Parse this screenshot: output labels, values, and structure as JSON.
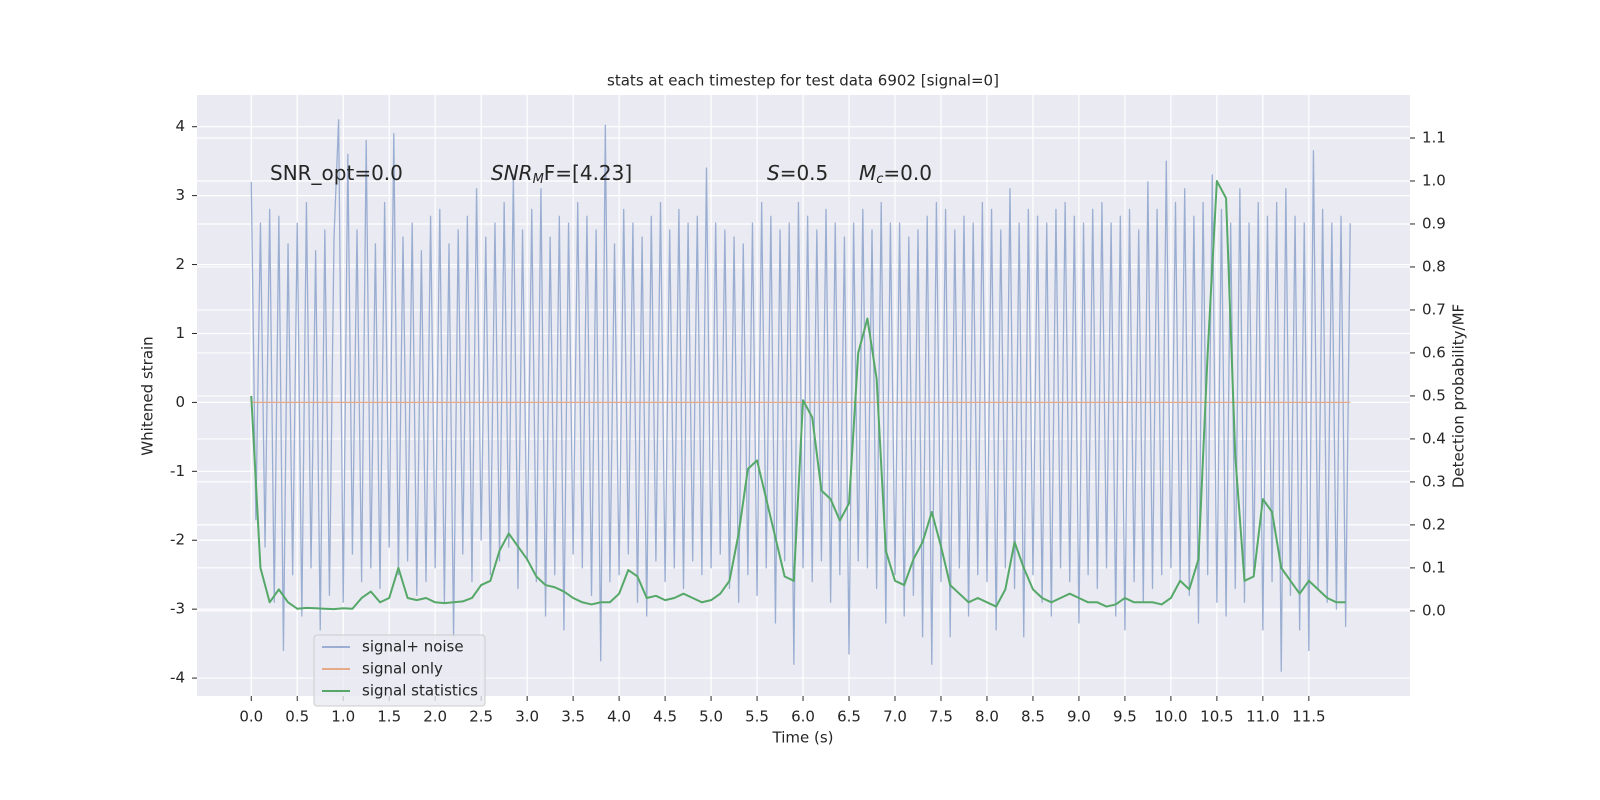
{
  "chart_data": {
    "type": "line",
    "title": "stats at each timestep for test data 6902 [signal=0]",
    "xlabel": "Time (s)",
    "ylabel": "Whitened strain",
    "y2label": "Detection probability/MF",
    "annotations": [
      [
        "SNR_opt=0.0"
      ],
      [
        "SNR",
        "M",
        "F=[4.23]"
      ],
      [
        "S",
        "=0.5"
      ],
      [
        "M",
        "c",
        "=0.0"
      ]
    ],
    "grid": true,
    "legend": "lower left",
    "xlim": [
      -0.59,
      12.6
    ],
    "ylim": [
      -4.26,
      4.46
    ],
    "y2lim": [
      -0.198,
      1.2
    ],
    "xticks": [
      {
        "value": 0,
        "label": "0.0"
      },
      0.5,
      {
        "value": 1,
        "label": "1.0"
      },
      1.5,
      {
        "value": 2,
        "label": "2.0"
      },
      2.5,
      {
        "value": 3,
        "label": "3.0"
      },
      3.5,
      {
        "value": 4,
        "label": "4.0"
      },
      4.5,
      {
        "value": 5,
        "label": "5.0"
      },
      5.5,
      {
        "value": 6,
        "label": "6.0"
      },
      6.5,
      {
        "value": 7,
        "label": "7.0"
      },
      7.5,
      {
        "value": 8,
        "label": "8.0"
      },
      8.5,
      {
        "value": 9,
        "label": "9.0"
      },
      9.5,
      {
        "value": 10,
        "label": "10.0"
      },
      10.5,
      {
        "value": 11,
        "label": "11.0"
      },
      11.5
    ],
    "yticks": [
      -4,
      -3,
      -2,
      -1,
      0,
      1,
      2,
      3,
      4
    ],
    "y2ticks": [
      {
        "value": 0,
        "label": "0.0"
      },
      0.1,
      0.2,
      0.3,
      0.4,
      0.5,
      0.6,
      0.7,
      0.8,
      0.9,
      {
        "value": 1,
        "label": "1.0"
      },
      1.1
    ],
    "series": [
      {
        "name": "signal+ noise",
        "color": "#9aaed2",
        "x": [
          0,
          0.05,
          0.1,
          0.15,
          0.2,
          0.25,
          0.3,
          0.35,
          0.4,
          0.45,
          0.5,
          0.55,
          0.6,
          0.65,
          0.7,
          0.75,
          0.8,
          0.85,
          0.9,
          0.95,
          1,
          1.05,
          1.1,
          1.15,
          1.2,
          1.25,
          1.3,
          1.35,
          1.4,
          1.45,
          1.5,
          1.55,
          1.6,
          1.65,
          1.7,
          1.75,
          1.8,
          1.85,
          1.9,
          1.95,
          2,
          2.05,
          2.1,
          2.15,
          2.2,
          2.25,
          2.3,
          2.35,
          2.4,
          2.45,
          2.5,
          2.55,
          2.6,
          2.65,
          2.7,
          2.75,
          2.8,
          2.85,
          2.9,
          2.95,
          3,
          3.05,
          3.1,
          3.15,
          3.2,
          3.25,
          3.3,
          3.35,
          3.4,
          3.45,
          3.5,
          3.55,
          3.6,
          3.65,
          3.7,
          3.75,
          3.8,
          3.85,
          3.9,
          3.95,
          4,
          4.05,
          4.1,
          4.15,
          4.2,
          4.25,
          4.3,
          4.35,
          4.4,
          4.45,
          4.5,
          4.55,
          4.6,
          4.65,
          4.7,
          4.75,
          4.8,
          4.85,
          4.9,
          4.95,
          5,
          5.05,
          5.1,
          5.15,
          5.2,
          5.25,
          5.3,
          5.35,
          5.4,
          5.45,
          5.5,
          5.55,
          5.6,
          5.65,
          5.7,
          5.75,
          5.8,
          5.85,
          5.9,
          5.95,
          6,
          6.05,
          6.1,
          6.15,
          6.2,
          6.25,
          6.3,
          6.35,
          6.4,
          6.45,
          6.5,
          6.55,
          6.6,
          6.65,
          6.7,
          6.75,
          6.8,
          6.85,
          6.9,
          6.95,
          7,
          7.05,
          7.1,
          7.15,
          7.2,
          7.25,
          7.3,
          7.35,
          7.4,
          7.45,
          7.5,
          7.55,
          7.6,
          7.65,
          7.7,
          7.75,
          7.8,
          7.85,
          7.9,
          7.95,
          8,
          8.05,
          8.1,
          8.15,
          8.2,
          8.25,
          8.3,
          8.35,
          8.4,
          8.45,
          8.5,
          8.55,
          8.6,
          8.65,
          8.7,
          8.75,
          8.8,
          8.85,
          8.9,
          8.95,
          9,
          9.05,
          9.1,
          9.15,
          9.2,
          9.25,
          9.3,
          9.35,
          9.4,
          9.45,
          9.5,
          9.55,
          9.6,
          9.65,
          9.7,
          9.75,
          9.8,
          9.85,
          9.9,
          9.95,
          10,
          10.05,
          10.1,
          10.15,
          10.2,
          10.25,
          10.3,
          10.35,
          10.4,
          10.45,
          10.5,
          10.55,
          10.6,
          10.65,
          10.7,
          10.75,
          10.8,
          10.85,
          10.9,
          10.95,
          11,
          11.05,
          11.1,
          11.15,
          11.2,
          11.25,
          11.3,
          11.35,
          11.4,
          11.45,
          11.5,
          11.55,
          11.6,
          11.65,
          11.7,
          11.75,
          11.8,
          11.85,
          11.9,
          11.95
        ],
        "values": [
          3.2,
          -1.7,
          2.6,
          -2.1,
          2.8,
          -2.9,
          2.7,
          -3.6,
          2.3,
          -2.5,
          2.6,
          -3.1,
          2.9,
          -2.4,
          2.2,
          -3.3,
          2.5,
          -2.8,
          2.4,
          4.1,
          -2.9,
          3.6,
          -2.2,
          2.5,
          -2.6,
          3.8,
          -2.4,
          2.3,
          -2.7,
          2.9,
          -2.1,
          3.9,
          -2.5,
          2.4,
          -2.3,
          2.6,
          -2.8,
          2.2,
          -2.6,
          2.7,
          -2.4,
          2.8,
          -2.9,
          2.3,
          -3.4,
          2.5,
          -2.2,
          2.7,
          -2.6,
          3.1,
          -2.0,
          2.4,
          -2.5,
          2.6,
          -2.3,
          2.9,
          -2.1,
          3.3,
          -2.7,
          2.5,
          -2.3,
          2.8,
          -2.6,
          3.1,
          -3.1,
          2.4,
          -2.5,
          2.7,
          -3.3,
          2.6,
          -2.2,
          2.9,
          -2.4,
          2.7,
          -2.8,
          2.5,
          -3.75,
          4.02,
          -2.6,
          2.3,
          -2.5,
          2.8,
          -2.2,
          2.6,
          -2.9,
          2.4,
          -3.1,
          2.7,
          -2.3,
          2.9,
          -2.6,
          2.5,
          -2.4,
          2.8,
          -2.7,
          2.6,
          -2.3,
          2.7,
          -2.5,
          3.4,
          -2.4,
          2.6,
          -2.2,
          2.5,
          -2.7,
          2.4,
          -2.9,
          2.3,
          -2.5,
          2.6,
          -2.8,
          2.9,
          -2.4,
          2.7,
          -3.2,
          2.5,
          -2.3,
          2.6,
          -3.8,
          2.9,
          -2.4,
          2.7,
          -2.6,
          2.5,
          -2.3,
          2.8,
          -2.9,
          2.6,
          -2.5,
          2.4,
          -3.65,
          2.6,
          -2.3,
          2.8,
          -2.4,
          2.5,
          -2.7,
          2.9,
          -3.2,
          2.6,
          -2.5,
          2.6,
          -3.1,
          2.4,
          -2.8,
          2.5,
          -3.4,
          2.7,
          -3.8,
          2.9,
          -2.6,
          2.8,
          -3.4,
          2.5,
          -2.4,
          2.7,
          -3.1,
          2.6,
          -2.5,
          2.9,
          -2.6,
          2.8,
          -3.3,
          2.5,
          -2.4,
          3.1,
          -2.7,
          2.6,
          -3.4,
          2.8,
          -2.5,
          2.7,
          -2.9,
          2.6,
          -3.1,
          2.8,
          -2.4,
          2.9,
          -2.6,
          2.7,
          -3.2,
          2.6,
          -2.5,
          2.8,
          -2.7,
          2.9,
          -2.4,
          2.6,
          -3.1,
          2.7,
          -3.3,
          2.8,
          -2.6,
          2.5,
          -2.9,
          3.2,
          -2.7,
          2.8,
          -2.5,
          3.5,
          -2.4,
          2.9,
          -2.6,
          3.1,
          -2.8,
          2.7,
          -3.2,
          2.9,
          -2.5,
          3.3,
          -2.9,
          2.8,
          -3.1,
          2.6,
          -2.7,
          3.1,
          -2.9,
          2.6,
          -2.5,
          2.9,
          -3.3,
          2.7,
          -2.6,
          2.9,
          -3.9,
          3.1,
          -2.8,
          2.7,
          -3.3,
          2.6,
          -3.6,
          3.65,
          -2.7,
          2.8,
          -2.9,
          2.6,
          -3.0,
          2.7,
          -3.25,
          2.6
        ]
      },
      {
        "name": "signal only",
        "color": "#e6a98a",
        "x": [
          0,
          11.95
        ],
        "values": [
          0,
          0
        ]
      },
      {
        "name": "signal statistics",
        "color": "#55a868",
        "axis": "y2",
        "x": [
          0,
          0.1,
          0.2,
          0.3,
          0.4,
          0.5,
          0.6,
          0.7,
          0.8,
          0.9,
          1,
          1.1,
          1.2,
          1.3,
          1.4,
          1.5,
          1.6,
          1.7,
          1.8,
          1.9,
          2,
          2.1,
          2.2,
          2.3,
          2.4,
          2.5,
          2.6,
          2.7,
          2.8,
          2.9,
          3,
          3.1,
          3.2,
          3.3,
          3.4,
          3.5,
          3.6,
          3.7,
          3.8,
          3.9,
          4,
          4.1,
          4.2,
          4.3,
          4.4,
          4.5,
          4.6,
          4.7,
          4.8,
          4.9,
          5,
          5.1,
          5.2,
          5.3,
          5.4,
          5.5,
          5.6,
          5.7,
          5.8,
          5.9,
          6,
          6.1,
          6.2,
          6.3,
          6.4,
          6.5,
          6.6,
          6.7,
          6.8,
          6.9,
          7,
          7.1,
          7.2,
          7.3,
          7.4,
          7.5,
          7.6,
          7.7,
          7.8,
          7.9,
          8,
          8.1,
          8.2,
          8.3,
          8.4,
          8.5,
          8.6,
          8.7,
          8.8,
          8.9,
          9,
          9.1,
          9.2,
          9.3,
          9.4,
          9.5,
          9.6,
          9.7,
          9.8,
          9.9,
          10,
          10.1,
          10.2,
          10.3,
          10.4,
          10.5,
          10.6,
          10.7,
          10.8,
          10.9,
          11,
          11.1,
          11.2,
          11.3,
          11.4,
          11.5,
          11.6,
          11.7,
          11.8,
          11.9
        ],
        "values": [
          0.5,
          0.1,
          0.02,
          0.05,
          0.02,
          0.005,
          0.007,
          0.006,
          0.005,
          0.004,
          0.006,
          0.005,
          0.03,
          0.045,
          0.02,
          0.03,
          0.1,
          0.03,
          0.025,
          0.03,
          0.02,
          0.018,
          0.02,
          0.022,
          0.03,
          0.06,
          0.07,
          0.14,
          0.18,
          0.15,
          0.12,
          0.08,
          0.06,
          0.055,
          0.045,
          0.03,
          0.02,
          0.015,
          0.02,
          0.02,
          0.04,
          0.095,
          0.08,
          0.03,
          0.035,
          0.025,
          0.03,
          0.04,
          0.03,
          0.02,
          0.025,
          0.04,
          0.07,
          0.18,
          0.33,
          0.35,
          0.26,
          0.17,
          0.08,
          0.07,
          0.49,
          0.45,
          0.28,
          0.26,
          0.21,
          0.25,
          0.6,
          0.68,
          0.54,
          0.14,
          0.07,
          0.06,
          0.12,
          0.16,
          0.23,
          0.15,
          0.06,
          0.04,
          0.02,
          0.03,
          0.02,
          0.01,
          0.05,
          0.16,
          0.1,
          0.05,
          0.03,
          0.02,
          0.03,
          0.04,
          0.03,
          0.02,
          0.02,
          0.01,
          0.015,
          0.03,
          0.02,
          0.02,
          0.02,
          0.015,
          0.03,
          0.07,
          0.05,
          0.12,
          0.6,
          1.0,
          0.96,
          0.36,
          0.07,
          0.08,
          0.26,
          0.23,
          0.1,
          0.07,
          0.04,
          0.07,
          0.05,
          0.03,
          0.02,
          0.02
        ]
      }
    ]
  }
}
